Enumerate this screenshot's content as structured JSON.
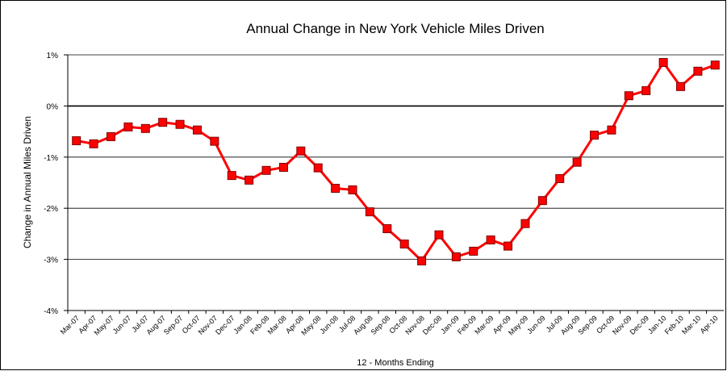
{
  "chart_data": {
    "type": "line",
    "title": "Annual Change in New York Vehicle Miles Driven",
    "x_label": "12 - Months Ending",
    "y_label": "Change in Annual Miles Driven",
    "categories": [
      "Mar-07",
      "Apr-07",
      "May-07",
      "Jun-07",
      "Jul-07",
      "Aug-07",
      "Sep-07",
      "Oct-07",
      "Nov-07",
      "Dec-07",
      "Jan-08",
      "Feb-08",
      "Mar-08",
      "Apr-08",
      "May-08",
      "Jun-08",
      "Jul-08",
      "Aug-08",
      "Sep-08",
      "Oct-08",
      "Nov-08",
      "Dec-08",
      "Jan-09",
      "Feb-09",
      "Mar-09",
      "Apr-09",
      "May-09",
      "Jun-09",
      "Jul-09",
      "Aug-09",
      "Sep-09",
      "Oct-09",
      "Nov-09",
      "Dec-09",
      "Jan-10",
      "Feb-10",
      "Mar-10",
      "Apr-10"
    ],
    "values": [
      -0.68,
      -0.74,
      -0.6,
      -0.41,
      -0.44,
      -0.32,
      -0.36,
      -0.47,
      -0.69,
      -1.36,
      -1.45,
      -1.26,
      -1.2,
      -0.88,
      -1.21,
      -1.61,
      -1.64,
      -2.07,
      -2.4,
      -2.7,
      -3.03,
      -2.52,
      -2.95,
      -2.84,
      -2.62,
      -2.74,
      -2.3,
      -1.85,
      -1.42,
      -1.1,
      -0.57,
      -0.47,
      0.2,
      0.3,
      0.85,
      0.38,
      0.68,
      0.8
    ],
    "color": "#ff0000",
    "ylim": [
      -4,
      1
    ],
    "yticks": [
      {
        "value": -4,
        "label": "-4%"
      },
      {
        "value": -3,
        "label": "-3%"
      },
      {
        "value": -2,
        "label": "-2%"
      },
      {
        "value": -1,
        "label": "-1%"
      },
      {
        "value": 0,
        "label": "0%"
      },
      {
        "value": 1,
        "label": "1%"
      }
    ],
    "grid": true
  }
}
